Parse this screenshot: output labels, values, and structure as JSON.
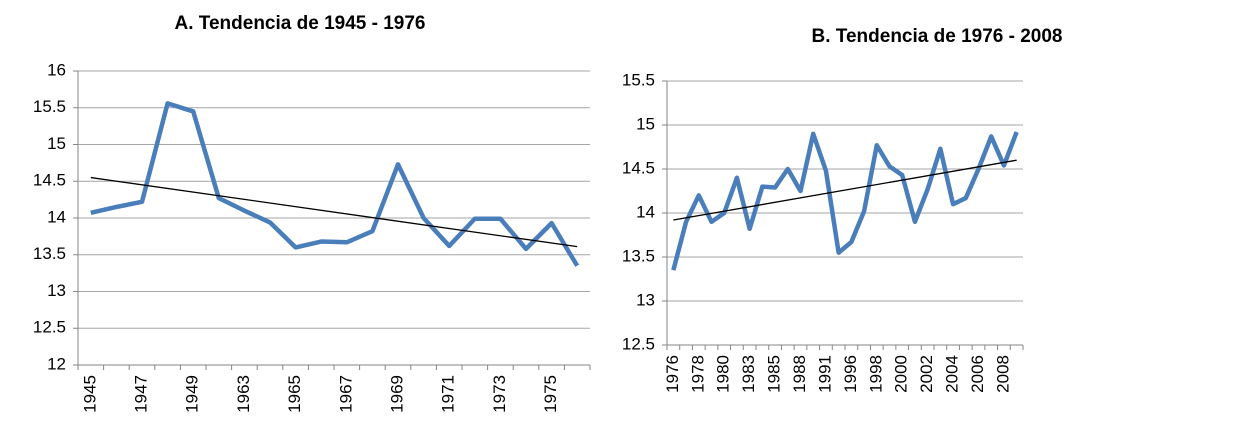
{
  "chart_data": [
    {
      "type": "line",
      "title": "A. Tendencia de 1945 - 1976",
      "categories": [
        "1945",
        null,
        "1947",
        null,
        "1949",
        null,
        "1963",
        null,
        "1965",
        null,
        "1967",
        null,
        "1969",
        null,
        "1971",
        null,
        "1973",
        null,
        "1975",
        null
      ],
      "series": [
        {
          "color": "#4a7ebb",
          "values": [
            14.07,
            14.15,
            14.22,
            15.56,
            15.45,
            14.27,
            14.1,
            13.94,
            13.6,
            13.68,
            13.67,
            13.82,
            14.73,
            14.0,
            13.62,
            13.99,
            13.99,
            13.58,
            13.93,
            13.35
          ]
        }
      ],
      "trendline": {
        "color": "#000000",
        "values": [
          14.55,
          13.61
        ]
      },
      "ylim": [
        12,
        16
      ],
      "yticks": [
        12,
        12.5,
        13,
        13.5,
        14,
        14.5,
        15,
        15.5,
        16
      ],
      "grid": true
    },
    {
      "type": "line",
      "title": "B. Tendencia de 1976 - 2008",
      "categories": [
        "1976",
        null,
        "1978",
        null,
        "1980",
        null,
        "1983",
        null,
        "1985",
        null,
        "1988",
        null,
        "1991",
        null,
        "1996",
        null,
        "1998",
        null,
        "2000",
        null,
        "2002",
        null,
        "2004",
        null,
        "2006",
        null,
        "2008",
        null
      ],
      "series": [
        {
          "color": "#4a7ebb",
          "values": [
            13.35,
            13.9,
            14.2,
            13.9,
            14.0,
            14.4,
            13.82,
            14.3,
            14.29,
            14.5,
            14.25,
            14.9,
            14.48,
            13.55,
            13.67,
            14.02,
            14.77,
            14.53,
            14.43,
            13.9,
            14.27,
            14.73,
            14.1,
            14.17,
            14.5,
            14.87,
            14.54,
            14.92
          ]
        }
      ],
      "trendline": {
        "color": "#000000",
        "values": [
          13.92,
          14.6
        ]
      },
      "ylim": [
        12.5,
        15.5
      ],
      "yticks": [
        12.5,
        13,
        13.5,
        14,
        14.5,
        15,
        15.5
      ],
      "grid": true
    }
  ]
}
